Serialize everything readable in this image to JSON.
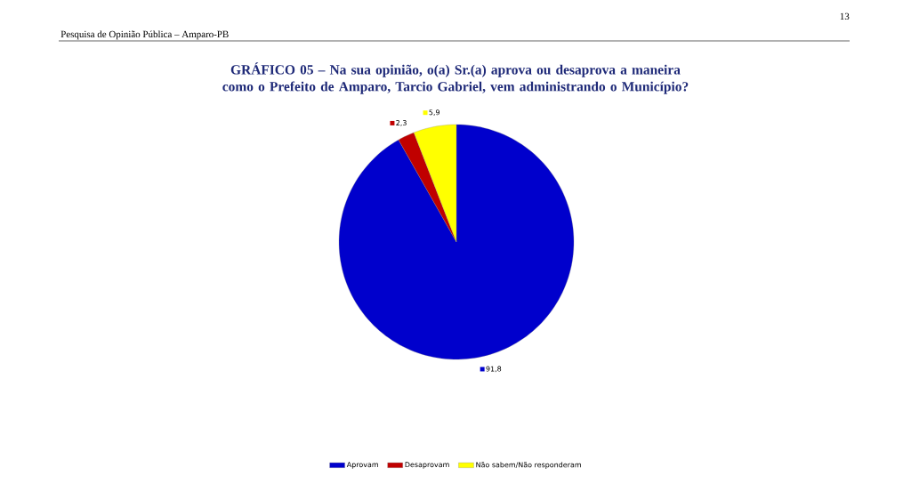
{
  "chart_data": {
    "type": "pie",
    "title": "GRÁFICO 05 – Na sua opinião, o(a) Sr.(a) aprova ou desaprova a maneira como o Prefeito de Amparo, Tarcio Gabriel, vem administrando o Município?",
    "annotations": [
      "Pesquisa de Opinião Pública – Amparo-PB",
      "13"
    ],
    "categories": [
      "Aprovam",
      "Desaprovam",
      "Não sabem/Não responderam"
    ],
    "values": [
      91.8,
      2.3,
      5.9
    ],
    "colors": [
      "#0000cc",
      "#c00000",
      "#ffff00"
    ],
    "value_labels": [
      "91,8",
      "2,3",
      "5,9"
    ],
    "legend": "bottom"
  }
}
